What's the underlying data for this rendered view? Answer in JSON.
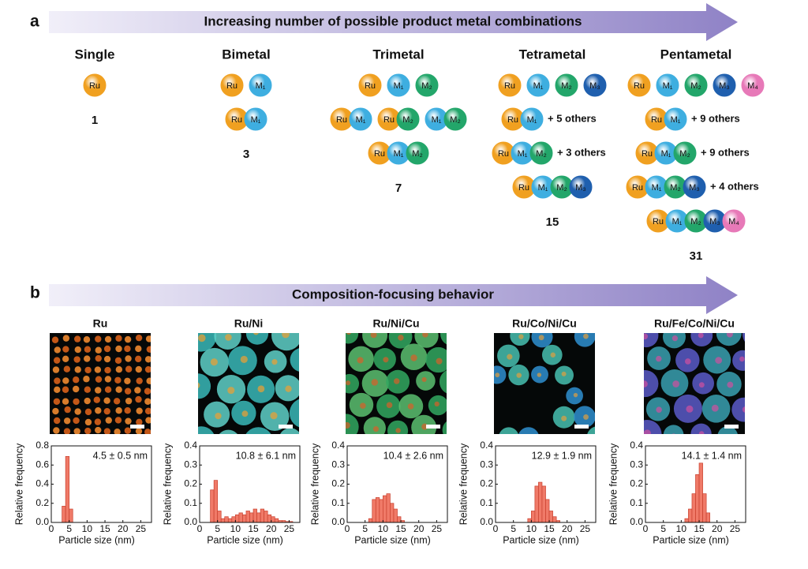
{
  "panel_a": {
    "label": "a",
    "arrow_text": "Increasing number of possible product metal combinations",
    "sphere_colors": {
      "Ru": "#f0a020",
      "M₁": "#3eaee0",
      "M₂": "#23a66a",
      "M₃": "#1f5fae",
      "M₄": "#e779b8"
    },
    "columns": [
      {
        "title": "Single",
        "rows": [
          {
            "groups": [
              [
                "Ru"
              ]
            ]
          }
        ],
        "count": 1
      },
      {
        "title": "Bimetal",
        "rows": [
          {
            "groups": [
              [
                "Ru"
              ],
              [
                "M₁"
              ]
            ]
          },
          {
            "groups": [
              [
                "Ru",
                "M₁"
              ]
            ]
          }
        ],
        "count": 3
      },
      {
        "title": "Trimetal",
        "rows": [
          {
            "groups": [
              [
                "Ru"
              ],
              [
                "M₁"
              ],
              [
                "M₂"
              ]
            ]
          },
          {
            "groups": [
              [
                "Ru",
                "M₁"
              ],
              [
                "Ru",
                "M₂"
              ],
              [
                "M₁",
                "M₂"
              ]
            ]
          },
          {
            "groups": [
              [
                "Ru",
                "M₁",
                "M₂"
              ]
            ]
          }
        ],
        "count": 7
      },
      {
        "title": "Tetrametal",
        "rows": [
          {
            "groups": [
              [
                "Ru"
              ],
              [
                "M₁"
              ],
              [
                "M₂"
              ],
              [
                "M₃"
              ]
            ]
          },
          {
            "groups": [
              [
                "Ru",
                "M₁"
              ]
            ],
            "note": "+ 5 others"
          },
          {
            "groups": [
              [
                "Ru",
                "M₁",
                "M₂"
              ]
            ],
            "note": "+ 3 others"
          },
          {
            "groups": [
              [
                "Ru",
                "M₁",
                "M₂",
                "M₃"
              ]
            ]
          }
        ],
        "count": 15
      },
      {
        "title": "Pentametal",
        "rows": [
          {
            "groups": [
              [
                "Ru"
              ],
              [
                "M₁"
              ],
              [
                "M₂"
              ],
              [
                "M₃"
              ],
              [
                "M₄"
              ]
            ]
          },
          {
            "groups": [
              [
                "Ru",
                "M₁"
              ]
            ],
            "note": "+ 9 others"
          },
          {
            "groups": [
              [
                "Ru",
                "M₁",
                "M₂"
              ]
            ],
            "note": "+ 9 others"
          },
          {
            "groups": [
              [
                "Ru",
                "M₁",
                "M₂",
                "M₃"
              ]
            ],
            "note": "+ 4 others"
          },
          {
            "groups": [
              [
                "Ru",
                "M₁",
                "M₂",
                "M₃",
                "M₄"
              ]
            ]
          }
        ],
        "count": 31
      }
    ]
  },
  "panel_b": {
    "label": "b",
    "arrow_text": "Composition-focusing behavior"
  },
  "chart_data": [
    {
      "type": "histogram",
      "title": "Ru",
      "annotation": "4.5 ± 0.5 nm",
      "color": "#f07a68",
      "bins": [
        3,
        4,
        5,
        6
      ],
      "values": [
        0.17,
        0.69,
        0.14
      ],
      "xlim": [
        0,
        28
      ],
      "ylim": [
        0,
        0.8
      ],
      "xticks": [
        0,
        5,
        10,
        15,
        20,
        25
      ],
      "yticks": [
        {
          "value": 0,
          "label": "0.0"
        },
        0.2,
        0.4,
        0.6,
        0.8
      ],
      "xlabel": "Particle size (nm)",
      "ylabel": "Relative frequency"
    },
    {
      "type": "histogram",
      "title": "Ru/Ni",
      "annotation": "10.8 ± 6.1 nm",
      "color": "#f07a68",
      "bins": [
        3,
        4,
        5,
        6,
        7,
        8,
        9,
        10,
        11,
        12,
        13,
        14,
        15,
        16,
        17,
        18,
        19,
        20,
        21,
        22,
        23,
        24,
        25,
        26
      ],
      "values": [
        0.17,
        0.22,
        0.06,
        0.02,
        0.03,
        0.02,
        0.03,
        0.04,
        0.05,
        0.04,
        0.06,
        0.05,
        0.07,
        0.05,
        0.07,
        0.06,
        0.04,
        0.03,
        0.02,
        0.01,
        0.01,
        0.005,
        0.005
      ],
      "xlim": [
        0,
        28
      ],
      "ylim": [
        0,
        0.4
      ],
      "xticks": [
        0,
        5,
        10,
        15,
        20,
        25
      ],
      "yticks": [
        {
          "value": 0,
          "label": "0.0"
        },
        0.1,
        0.2,
        0.3,
        0.4
      ],
      "xlabel": "Particle size (nm)",
      "ylabel": "Relative frequency"
    },
    {
      "type": "histogram",
      "title": "Ru/Ni/Cu",
      "annotation": "10.4 ± 2.6 nm",
      "color": "#f07a68",
      "bins": [
        6,
        7,
        8,
        9,
        10,
        11,
        12,
        13,
        14,
        15,
        16
      ],
      "values": [
        0.02,
        0.12,
        0.13,
        0.12,
        0.14,
        0.15,
        0.1,
        0.07,
        0.03,
        0.01
      ],
      "xlim": [
        0,
        28
      ],
      "ylim": [
        0,
        0.4
      ],
      "xticks": [
        0,
        5,
        10,
        15,
        20,
        25
      ],
      "yticks": [
        {
          "value": 0,
          "label": "0.0"
        },
        0.1,
        0.2,
        0.3,
        0.4
      ],
      "xlabel": "Particle size (nm)",
      "ylabel": "Relative frequency"
    },
    {
      "type": "histogram",
      "title": "Ru/Co/Ni/Cu",
      "annotation": "12.9 ± 1.9 nm",
      "color": "#f07a68",
      "bins": [
        9,
        10,
        11,
        12,
        13,
        14,
        15,
        16,
        17,
        18
      ],
      "values": [
        0.02,
        0.06,
        0.19,
        0.21,
        0.19,
        0.12,
        0.06,
        0.03,
        0.01
      ],
      "xlim": [
        0,
        28
      ],
      "ylim": [
        0,
        0.4
      ],
      "xticks": [
        0,
        5,
        10,
        15,
        20,
        25
      ],
      "yticks": [
        {
          "value": 0,
          "label": "0.0"
        },
        0.1,
        0.2,
        0.3,
        0.4
      ],
      "xlabel": "Particle size (nm)",
      "ylabel": "Relative frequency"
    },
    {
      "type": "histogram",
      "title": "Ru/Fe/Co/Ni/Cu",
      "annotation": "14.1 ± 1.4 nm",
      "color": "#f07a68",
      "bins": [
        11,
        12,
        13,
        14,
        15,
        16,
        17,
        18
      ],
      "values": [
        0.02,
        0.07,
        0.15,
        0.25,
        0.31,
        0.15,
        0.05
      ],
      "xlim": [
        0,
        28
      ],
      "ylim": [
        0,
        0.4
      ],
      "xticks": [
        0,
        5,
        10,
        15,
        20,
        25
      ],
      "yticks": [
        {
          "value": 0,
          "label": "0.0"
        },
        0.1,
        0.2,
        0.3,
        0.4
      ],
      "xlabel": "Particle size (nm)",
      "ylabel": "Relative frequency"
    }
  ]
}
